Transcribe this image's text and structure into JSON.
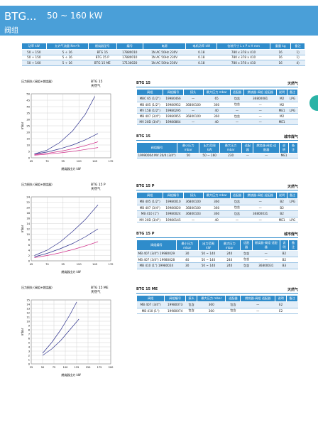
{
  "header": {
    "title": "BTG...",
    "range": "50 ~ 160 kW",
    "subtitle": "阀组"
  },
  "models_table": {
    "headers": [
      "功率 kW",
      "允许气流量 Nm³/h",
      "燃烧器型号",
      "编号",
      "电源",
      "电机功率 kW",
      "包装尺寸 L x P x H mm",
      "重量 kg",
      "备注"
    ],
    "rows": [
      [
        "50 ÷ 150",
        "5 ÷ 16",
        "BTG 15",
        "17880010",
        "1N AC 50Hz 230V",
        "0.18",
        "780 x 378 x 410",
        "16",
        "1)"
      ],
      [
        "50 ÷ 150",
        "5 ÷ 16",
        "BTG 15 P",
        "17880010",
        "1N AC 50Hz 230V",
        "0.18",
        "780 x 378 x 410",
        "16",
        "1)"
      ],
      [
        "50 ÷ 160",
        "5 ÷ 16",
        "BTG 15 ME",
        "17130020",
        "1N AC 50Hz 230V",
        "0.18",
        "780 x 378 x 410",
        "16",
        "4)"
      ]
    ]
  },
  "sections": [
    {
      "chart": {
        "title": "BTG 15",
        "fuel": "天然气",
        "ylabel": "压力损失 (阀组+燃烧器)",
        "yunit": "mbar",
        "xlabel": "燃烧器出力 kW",
        "xlim": [
          45,
          170
        ],
        "xticks": [
          45,
          70,
          95,
          120,
          145,
          170
        ],
        "ylim": [
          0,
          50
        ],
        "yticks": [
          0,
          5,
          10,
          15,
          20,
          25,
          30,
          35,
          40,
          45,
          50
        ],
        "series": [
          {
            "color": "#2b2f8c",
            "x": [
              50,
              70,
              90,
              110,
              130,
              145
            ],
            "y": [
              3,
              6,
              12,
              21,
              34,
              48
            ]
          },
          {
            "color": "#2b2f8c",
            "x": [
              50,
              70,
              90,
              110,
              130,
              150
            ],
            "y": [
              3,
              4.5,
              7,
              10,
              14,
              19
            ]
          },
          {
            "color": "#d0308a",
            "x": [
              50,
              70,
              90,
              110,
              130,
              150
            ],
            "y": [
              2.5,
              3.5,
              5,
              7,
              9.5,
              12.5
            ]
          },
          {
            "color": "#d0308a",
            "x": [
              50,
              70,
              90,
              110,
              130,
              150
            ],
            "y": [
              2,
              2.8,
              3.8,
              5,
              6.5,
              8
            ]
          }
        ]
      },
      "natural_gas": {
        "title": "BTG 15",
        "fuel": "天然气",
        "headers": [
          "阀组",
          "阀组编号",
          "接头",
          "最大压力 mbar",
          "适配器",
          "燃烧器-阀组 适配器",
          "说明",
          "备注"
        ],
        "rows": [
          [
            "MBC 65 (1/2\")",
            "19980466",
            "—",
            "65",
            "包含",
            "36800081",
            "M2",
            "LPG"
          ],
          [
            "MB 405 (1/2\")",
            "19980952",
            "36800100",
            "360",
            "包含",
            "—",
            "M2",
            null
          ],
          [
            "MV 15B (1/2\")",
            "19980295",
            "—",
            "40",
            "—",
            "—",
            "ME1",
            "LPG"
          ],
          [
            "MB 407 (3/4\")",
            "19980955",
            "36800100",
            "360",
            "包含",
            "—",
            "M2",
            null
          ],
          [
            "MV 20D (3/4\")",
            "19980864",
            "—",
            "40",
            "—",
            "—",
            "ME1",
            null
          ]
        ]
      },
      "town_gas": {
        "title": "BTG 15",
        "fuel": "城市煤气",
        "headers": [
          "阀组编号",
          "最小压力 mbar",
          "出力范围 kW",
          "最大压力 mbar",
          "适配器",
          "燃烧器-阀组 适配器",
          "说明",
          "备注"
        ],
        "rows": [
          [
            "19990004 MV 20/4 (3/4\")",
            "50",
            "50 ~ 160",
            "230",
            "—",
            "—",
            "ME1",
            null
          ]
        ]
      }
    },
    {
      "chart": {
        "title": "BTG 15 P",
        "fuel": "天然气",
        "ylabel": "压力损失 (阀组+燃烧器)",
        "yunit": "mbar",
        "xlabel": "燃烧器出力 kW",
        "xlim": [
          45,
          170
        ],
        "xticks": [
          45,
          70,
          95,
          120,
          145,
          170
        ],
        "ylim": [
          0,
          24
        ],
        "yticks": [
          0,
          2,
          4,
          6,
          8,
          10,
          12,
          14,
          16,
          18,
          20,
          22,
          24
        ],
        "series": [
          {
            "color": "#2b2f8c",
            "x": [
              50,
              70,
              90,
              110,
              130,
              150
            ],
            "y": [
              2,
              4,
              7,
              11,
              15.5,
              21
            ]
          },
          {
            "color": "#2b2f8c",
            "x": [
              50,
              70,
              90,
              110,
              130,
              150
            ],
            "y": [
              1.5,
              2.8,
              4.5,
              6.5,
              9,
              12
            ]
          },
          {
            "color": "#d0308a",
            "x": [
              50,
              70,
              90,
              110,
              130,
              150
            ],
            "y": [
              1.2,
              2,
              3,
              4.2,
              5.6,
              7.2
            ]
          }
        ]
      },
      "natural_gas": {
        "title": "BTG 15 P",
        "fuel": "天然气",
        "headers": [
          "阀组",
          "阀组编号",
          "接头",
          "最大压力 mbar",
          "适配器",
          "燃烧器-阀组 适配器",
          "说明",
          "备注"
        ],
        "rows": [
          [
            "MB 405 (1/2\")",
            "19980010",
            "36800100",
            "360",
            "包含",
            "—",
            "B2",
            "LPG"
          ],
          [
            "MB 407 (3/4\")",
            "19980020",
            "36800100",
            "360",
            "包含",
            "—",
            "B2",
            null
          ],
          [
            "MB 410 (1\")",
            "19980024",
            "36800103",
            "360",
            "包含",
            "36800031",
            "B2",
            null
          ],
          [
            "MV 20D (3/4\")",
            "19980145",
            "—",
            "40",
            "—",
            "—",
            "ME1",
            "LPG"
          ]
        ]
      },
      "town_gas": {
        "title": "BTG 15 P",
        "fuel": "城市煤气",
        "headers": [
          "阀组编号",
          "最小压力 mbar",
          "出力范围 kW",
          "最大压力 mbar",
          "适配器",
          "燃烧器-阀组 适配器",
          "说明",
          "备注"
        ],
        "rows": [
          [
            "MB 407 (3/4\") 19980029",
            "30",
            "50 ~ 140",
            "240",
            "包含",
            "—",
            "B2",
            null
          ],
          [
            "MB 407 (3/4\") 19980028",
            "40",
            "50 ~ 140",
            "240",
            "包含",
            "—",
            "B2",
            null
          ],
          [
            "MB 410 (1\") 19980024",
            "30",
            "50 ~ 140",
            "240",
            "包含",
            "36800031",
            "B3",
            null
          ]
        ]
      }
    },
    {
      "chart": {
        "title": "BTG 15 ME",
        "fuel": "天然气",
        "ylabel": "压力损失 (阀组+燃烧器)",
        "yunit": "mbar",
        "xlabel": "燃烧器出力 kW",
        "xlim": [
          25,
          200
        ],
        "xticks": [
          25,
          50,
          75,
          100,
          125,
          150,
          175,
          200
        ],
        "ylim": [
          0,
          15
        ],
        "yticks": [
          0,
          1,
          2,
          3,
          4,
          5,
          6,
          7,
          8,
          9,
          10,
          11,
          12,
          13,
          14,
          15
        ],
        "series": [
          {
            "color": "#2b2f8c",
            "x": [
              50,
              70,
              90,
              110,
              125
            ],
            "y": [
              2.5,
              5,
              8,
              11.5,
              14.5
            ]
          },
          {
            "color": "#2b2f8c",
            "x": [
              50,
              70,
              90,
              110,
              130
            ],
            "y": [
              2,
              3.5,
              5.5,
              8,
              10.5
            ]
          }
        ]
      },
      "natural_gas": {
        "title": "BTG 15 ME",
        "fuel": "天然气",
        "headers": [
          "阀组",
          "阀组编号",
          "接头",
          "最大压力 mbar",
          "适配器",
          "燃烧器-阀组 适配器",
          "说明",
          "备注"
        ],
        "rows": [
          [
            "MB 407 (3/4\")",
            "19980073",
            "包含",
            "360",
            "包含",
            "—",
            "E2",
            null
          ],
          [
            "MB 410 (1\")",
            "19980074",
            "包含",
            "360",
            "包含",
            "—",
            "E2",
            null
          ]
        ]
      }
    }
  ]
}
